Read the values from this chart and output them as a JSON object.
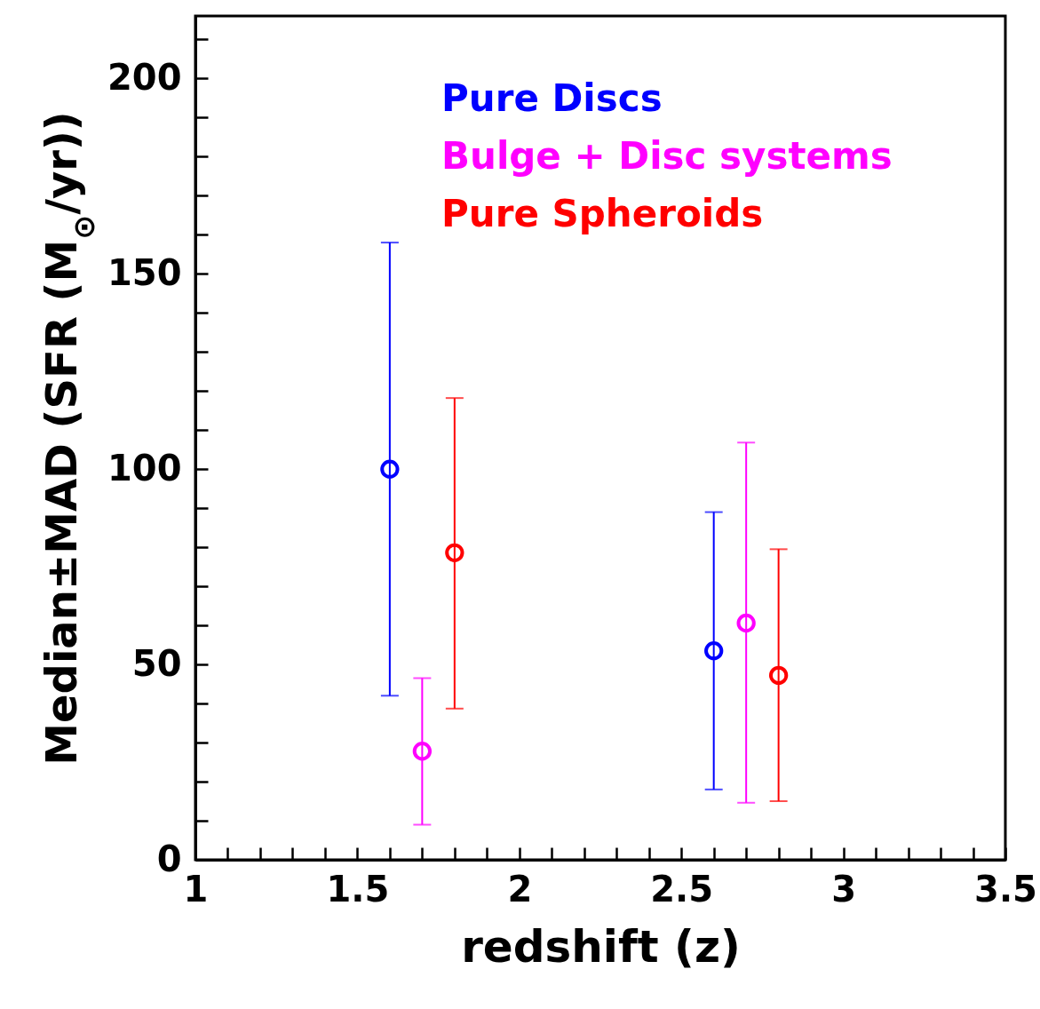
{
  "chart_data": {
    "type": "scatter",
    "xlabel": "redshift (z)",
    "ylabel": "Median±MAD (SFR (M$_{⊙}$/yr))",
    "xlim": [
      1,
      3.5
    ],
    "ylim": [
      0,
      216
    ],
    "xticks": [
      1,
      {
        "value": 1.1,
        "label": null
      },
      {
        "value": 1.2,
        "label": null
      },
      {
        "value": 1.3,
        "label": null
      },
      {
        "value": 1.4,
        "label": null
      },
      1.5,
      {
        "value": 1.6,
        "label": null
      },
      {
        "value": 1.7,
        "label": null
      },
      {
        "value": 1.8,
        "label": null
      },
      {
        "value": 1.9,
        "label": null
      },
      2,
      {
        "value": 2.1,
        "label": null
      },
      {
        "value": 2.2,
        "label": null
      },
      {
        "value": 2.3,
        "label": null
      },
      {
        "value": 2.4,
        "label": null
      },
      2.5,
      {
        "value": 2.6,
        "label": null
      },
      {
        "value": 2.7,
        "label": null
      },
      {
        "value": 2.8,
        "label": null
      },
      {
        "value": 2.9,
        "label": null
      },
      3,
      {
        "value": 3.1,
        "label": null
      },
      {
        "value": 3.2,
        "label": null
      },
      {
        "value": 3.3,
        "label": null
      },
      {
        "value": 3.4,
        "label": null
      },
      3.5
    ],
    "yticks": [
      0,
      {
        "value": 10,
        "label": null
      },
      {
        "value": 20,
        "label": null
      },
      {
        "value": 30,
        "label": null
      },
      {
        "value": 40,
        "label": null
      },
      50,
      {
        "value": 60,
        "label": null
      },
      {
        "value": 70,
        "label": null
      },
      {
        "value": 80,
        "label": null
      },
      {
        "value": 90,
        "label": null
      },
      100,
      {
        "value": 110,
        "label": null
      },
      {
        "value": 120,
        "label": null
      },
      {
        "value": 130,
        "label": null
      },
      {
        "value": 140,
        "label": null
      },
      150,
      {
        "value": 160,
        "label": null
      },
      {
        "value": 170,
        "label": null
      },
      {
        "value": 180,
        "label": null
      },
      {
        "value": 190,
        "label": null
      },
      200,
      {
        "value": 210,
        "label": null
      }
    ],
    "marker": "circle",
    "grid": false,
    "series": [
      {
        "name": "Pure Discs",
        "color": "#0000ff",
        "x": [
          1.6,
          2.6
        ],
        "values": [
          100,
          53.5
        ],
        "errors": [
          [
            42,
            158
          ],
          [
            18,
            89
          ]
        ]
      },
      {
        "name": "Bulge + Disc systems",
        "color": "#ff00ff",
        "x": [
          1.7,
          2.7
        ],
        "values": [
          27.8,
          60.6
        ],
        "errors": [
          [
            9,
            46.5
          ],
          [
            14.6,
            106.8
          ]
        ]
      },
      {
        "name": "Pure Spheroids",
        "color": "#ff0000",
        "x": [
          1.8,
          2.8
        ],
        "values": [
          78.6,
          47.2
        ],
        "errors": [
          [
            38.7,
            118.2
          ],
          [
            15,
            79.5
          ]
        ]
      }
    ]
  }
}
